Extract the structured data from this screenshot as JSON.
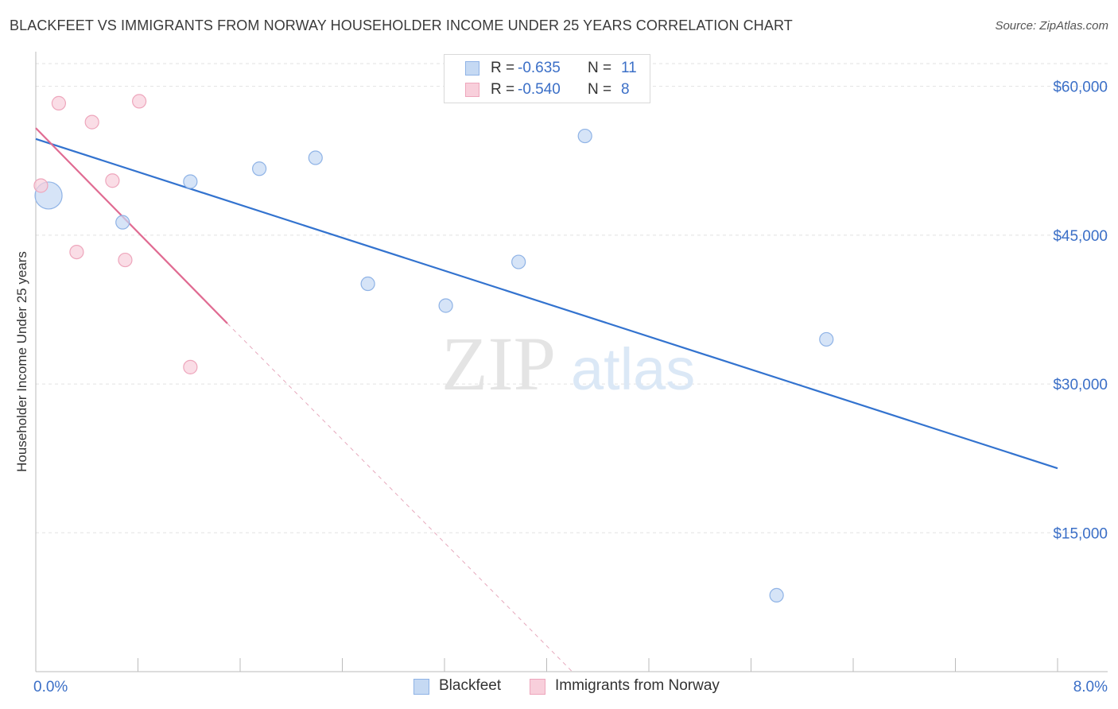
{
  "header": {
    "title": "BLACKFEET VS IMMIGRANTS FROM NORWAY HOUSEHOLDER INCOME UNDER 25 YEARS CORRELATION CHART",
    "source": "Source: ZipAtlas.com"
  },
  "watermark": {
    "zip": "ZIP",
    "atlas": "atlas"
  },
  "legend_stats": [
    {
      "r_label": "R =",
      "r_value": "-0.635",
      "n_label": "N =",
      "n_value": "11"
    },
    {
      "r_label": "R =",
      "r_value": "-0.540",
      "n_label": "N =",
      "n_value": "8"
    }
  ],
  "colors": {
    "blue_fill": "#c5d9f3",
    "blue_stroke": "#8fb3e6",
    "blue_line": "#3373cf",
    "pink_fill": "#f8cfdb",
    "pink_stroke": "#eea6bc",
    "pink_line": "#e06b92",
    "grid": "#e2e2e2",
    "axis_text": "#3b6fc7"
  },
  "chart_data": {
    "type": "scatter",
    "ylabel": "Householder Income Under 25 years",
    "xlim": [
      0,
      8
    ],
    "ylim": [
      1000,
      63500
    ],
    "x_tick_labels": [
      "0.0%",
      "8.0%"
    ],
    "y_ticks": [
      {
        "value": 15000,
        "label": "$15,000"
      },
      {
        "value": 30000,
        "label": "$30,000"
      },
      {
        "value": 45000,
        "label": "$45,000"
      },
      {
        "value": 60000,
        "label": "$60,000"
      }
    ],
    "series": [
      {
        "name": "Blackfeet",
        "color": "blue",
        "points": [
          {
            "x": 0.1,
            "y": 49000,
            "big": true
          },
          {
            "x": 0.68,
            "y": 46300
          },
          {
            "x": 1.21,
            "y": 50400
          },
          {
            "x": 1.75,
            "y": 51700
          },
          {
            "x": 2.19,
            "y": 52800
          },
          {
            "x": 2.6,
            "y": 40100
          },
          {
            "x": 3.21,
            "y": 37900
          },
          {
            "x": 3.78,
            "y": 42300
          },
          {
            "x": 4.3,
            "y": 55000
          },
          {
            "x": 5.8,
            "y": 8700
          },
          {
            "x": 6.19,
            "y": 34500
          }
        ],
        "trend": {
          "x0": 0.0,
          "y0": 54700,
          "x1": 8.0,
          "y1": 21500
        }
      },
      {
        "name": "Immigrants from Norway",
        "color": "pink",
        "points": [
          {
            "x": 0.04,
            "y": 50000
          },
          {
            "x": 0.18,
            "y": 58300
          },
          {
            "x": 0.44,
            "y": 56400
          },
          {
            "x": 0.32,
            "y": 43300
          },
          {
            "x": 0.6,
            "y": 50500
          },
          {
            "x": 0.7,
            "y": 42500
          },
          {
            "x": 0.81,
            "y": 58500
          },
          {
            "x": 1.21,
            "y": 31700
          }
        ],
        "trend": {
          "x0": 0.0,
          "y0": 55800,
          "x1": 1.5,
          "y1": 36100
        },
        "trend_ext": {
          "x1": 4.2,
          "y1": 1000
        }
      }
    ]
  }
}
